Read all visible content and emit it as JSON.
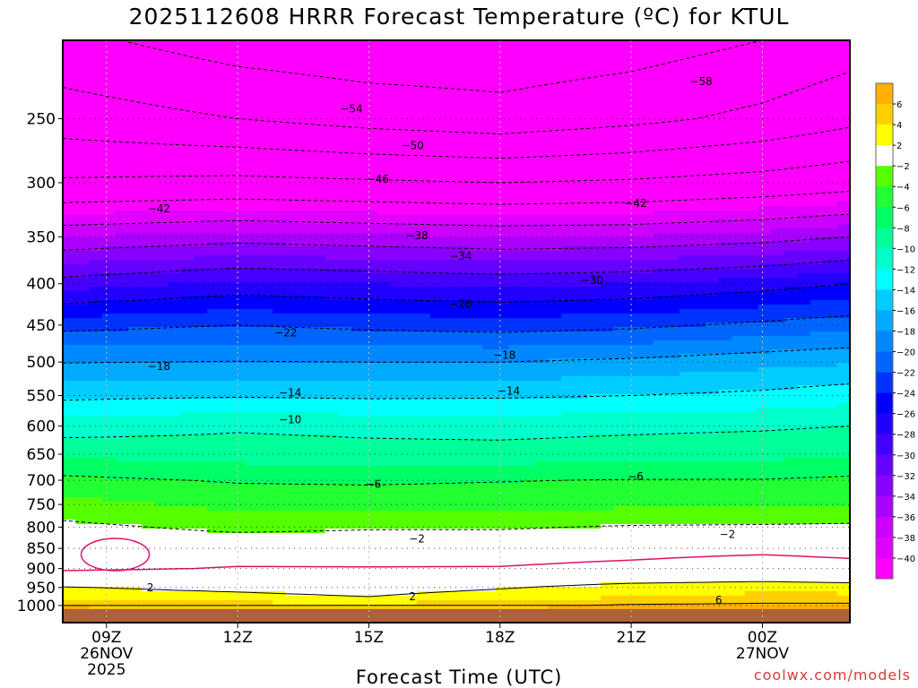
{
  "title": "2025112608 HRRR Forecast Temperature (ºC) for KTUL",
  "watermark": "coolwx.com/models",
  "chart_data": {
    "type": "heatmap",
    "title": "2025112608 HRRR Forecast Temperature (ºC) for KTUL",
    "xlabel": "Forecast Time (UTC)",
    "ylabel": "",
    "y_scale": "log-pressure",
    "y_unit": "hPa",
    "ylim": [
      1050,
      200
    ],
    "xlim_hours": [
      8,
      26
    ],
    "grid": true,
    "legend_position": "right",
    "x_ticks": [
      {
        "hour": 9,
        "lines": [
          "09Z",
          "26NOV",
          "2025"
        ]
      },
      {
        "hour": 12,
        "lines": [
          "12Z"
        ]
      },
      {
        "hour": 15,
        "lines": [
          "15Z"
        ]
      },
      {
        "hour": 18,
        "lines": [
          "18Z"
        ]
      },
      {
        "hour": 21,
        "lines": [
          "21Z"
        ]
      },
      {
        "hour": 24,
        "lines": [
          "00Z",
          "27NOV"
        ]
      }
    ],
    "y_ticks": [
      250,
      300,
      350,
      400,
      450,
      500,
      550,
      600,
      650,
      700,
      750,
      800,
      850,
      900,
      950,
      1000
    ],
    "colorbar": {
      "unit": "ºC",
      "bins": [
        {
          "lo": 6,
          "hi": 8,
          "color": "#ffb000"
        },
        {
          "lo": 4,
          "hi": 6,
          "color": "#ffd000"
        },
        {
          "lo": 2,
          "hi": 4,
          "color": "#ffff00"
        },
        {
          "lo": -2,
          "hi": 2,
          "color": "#ffffff"
        },
        {
          "lo": -4,
          "hi": -2,
          "color": "#55ff00"
        },
        {
          "lo": -6,
          "hi": -4,
          "color": "#22ff33"
        },
        {
          "lo": -8,
          "hi": -6,
          "color": "#00ff66"
        },
        {
          "lo": -10,
          "hi": -8,
          "color": "#00ff99"
        },
        {
          "lo": -12,
          "hi": -10,
          "color": "#00ffcc"
        },
        {
          "lo": -14,
          "hi": -12,
          "color": "#00ffff"
        },
        {
          "lo": -16,
          "hi": -14,
          "color": "#00ccff"
        },
        {
          "lo": -18,
          "hi": -16,
          "color": "#00aaff"
        },
        {
          "lo": -20,
          "hi": -18,
          "color": "#0088ff"
        },
        {
          "lo": -22,
          "hi": -20,
          "color": "#0066ff"
        },
        {
          "lo": -24,
          "hi": -22,
          "color": "#0033ff"
        },
        {
          "lo": -26,
          "hi": -24,
          "color": "#0000ff"
        },
        {
          "lo": -28,
          "hi": -26,
          "color": "#2200ff"
        },
        {
          "lo": -30,
          "hi": -28,
          "color": "#4400ff"
        },
        {
          "lo": -32,
          "hi": -30,
          "color": "#6600ff"
        },
        {
          "lo": -34,
          "hi": -32,
          "color": "#8800ff"
        },
        {
          "lo": -36,
          "hi": -34,
          "color": "#aa00ff"
        },
        {
          "lo": -38,
          "hi": -36,
          "color": "#cc00ff"
        },
        {
          "lo": -40,
          "hi": -38,
          "color": "#e000ff"
        },
        {
          "lo": -60,
          "hi": -40,
          "color": "#ff00ff"
        }
      ],
      "labels": [
        "6",
        "4",
        "2",
        "−2",
        "−4",
        "−6",
        "−8",
        "−10",
        "−12",
        "−14",
        "−16",
        "−18",
        "−20",
        "−22",
        "−24",
        "−26",
        "−28",
        "−30",
        "−32",
        "−34",
        "−36",
        "−38",
        "−40"
      ]
    },
    "temperature_profile": {
      "times": [
        8,
        12,
        15,
        18,
        21,
        24,
        26
      ],
      "levels": [
        1050,
        1000,
        975,
        950,
        925,
        900,
        850,
        800,
        750,
        700,
        650,
        600,
        550,
        500,
        450,
        400,
        350,
        300,
        250,
        200
      ],
      "temps": [
        [
          8,
          8,
          8,
          8,
          8,
          8,
          8
        ],
        [
          6,
          5,
          4.5,
          5.5,
          6.3,
          6.5,
          6.5
        ],
        [
          3,
          2.5,
          2.0,
          3,
          3.8,
          4.5,
          4.5
        ],
        [
          2.1,
          1.5,
          1,
          1.8,
          2.8,
          3.2,
          3.0
        ],
        [
          0.5,
          0.5,
          0.2,
          0.5,
          1.0,
          1.3,
          1.0
        ],
        [
          -0.2,
          0,
          0,
          0,
          0.2,
          0.5,
          0.3
        ],
        [
          -0.5,
          -0.5,
          -0.6,
          -0.5,
          -0.4,
          -0.3,
          -0.4
        ],
        [
          -1.5,
          -2.5,
          -2.2,
          -2.2,
          -1.8,
          -1.7,
          -1.6
        ],
        [
          -3.2,
          -4.6,
          -4.8,
          -4.7,
          -4.4,
          -4.3,
          -4.0
        ],
        [
          -5.5,
          -6.2,
          -6.3,
          -6.1,
          -5.9,
          -5.9,
          -5.6
        ],
        [
          -8.3,
          -9.0,
          -9.2,
          -9.2,
          -8.9,
          -8.6,
          -8.2
        ],
        [
          -11.2,
          -10.3,
          -10.6,
          -10.8,
          -10.5,
          -10.3,
          -10.0
        ],
        [
          -14.5,
          -14.2,
          -14.4,
          -14.3,
          -14.0,
          -13.5,
          -12.8
        ],
        [
          -18.1,
          -17.9,
          -18.0,
          -18.0,
          -17.5,
          -16.7,
          -16.2
        ],
        [
          -22.8,
          -22.0,
          -22.6,
          -23.0,
          -22.5,
          -21.5,
          -20.8
        ],
        [
          -29.0,
          -27.5,
          -28.0,
          -28.5,
          -28.0,
          -27.0,
          -26.0
        ],
        [
          -36.0,
          -35.0,
          -35.5,
          -36.0,
          -35.8,
          -35.0,
          -34.0
        ],
        [
          -45.5,
          -45.0,
          -45.5,
          -46.0,
          -45.5,
          -44.5,
          -43.5
        ],
        [
          -52.0,
          -54.0,
          -55.5,
          -56.5,
          -55.0,
          -53.0,
          -51.0
        ],
        [
          -57.0,
          -60.0,
          -61.0,
          -61.0,
          -60.0,
          -58.0,
          -56.0
        ]
      ]
    },
    "contour_labels": [
      {
        "value": "-58",
        "hour": 22.6,
        "p": 225
      },
      {
        "value": "-54",
        "hour": 14.6,
        "p": 243
      },
      {
        "value": "-50",
        "hour": 16.0,
        "p": 270
      },
      {
        "value": "-46",
        "hour": 15.2,
        "p": 297
      },
      {
        "value": "-42",
        "hour": 10.2,
        "p": 323
      },
      {
        "value": "-42",
        "hour": 21.1,
        "p": 318
      },
      {
        "value": "-38",
        "hour": 16.1,
        "p": 349
      },
      {
        "value": "-34",
        "hour": 17.1,
        "p": 370
      },
      {
        "value": "-30",
        "hour": 20.1,
        "p": 396
      },
      {
        "value": "-26",
        "hour": 17.1,
        "p": 424
      },
      {
        "value": "-22",
        "hour": 13.1,
        "p": 460
      },
      {
        "value": "-18",
        "hour": 10.2,
        "p": 506
      },
      {
        "value": "-18",
        "hour": 18.1,
        "p": 490
      },
      {
        "value": "-14",
        "hour": 13.2,
        "p": 546
      },
      {
        "value": "-14",
        "hour": 18.2,
        "p": 543
      },
      {
        "value": "-10",
        "hour": 13.2,
        "p": 589
      },
      {
        "value": "-6",
        "hour": 15.1,
        "p": 708
      },
      {
        "value": "-6",
        "hour": 21.1,
        "p": 693
      },
      {
        "value": "-2",
        "hour": 16.1,
        "p": 827
      },
      {
        "value": "-2",
        "hour": 23.2,
        "p": 817
      },
      {
        "value": "2",
        "hour": 10.0,
        "p": 951
      },
      {
        "value": "2",
        "hour": 16.0,
        "p": 975
      },
      {
        "value": "6",
        "hour": 23.0,
        "p": 985
      }
    ]
  }
}
